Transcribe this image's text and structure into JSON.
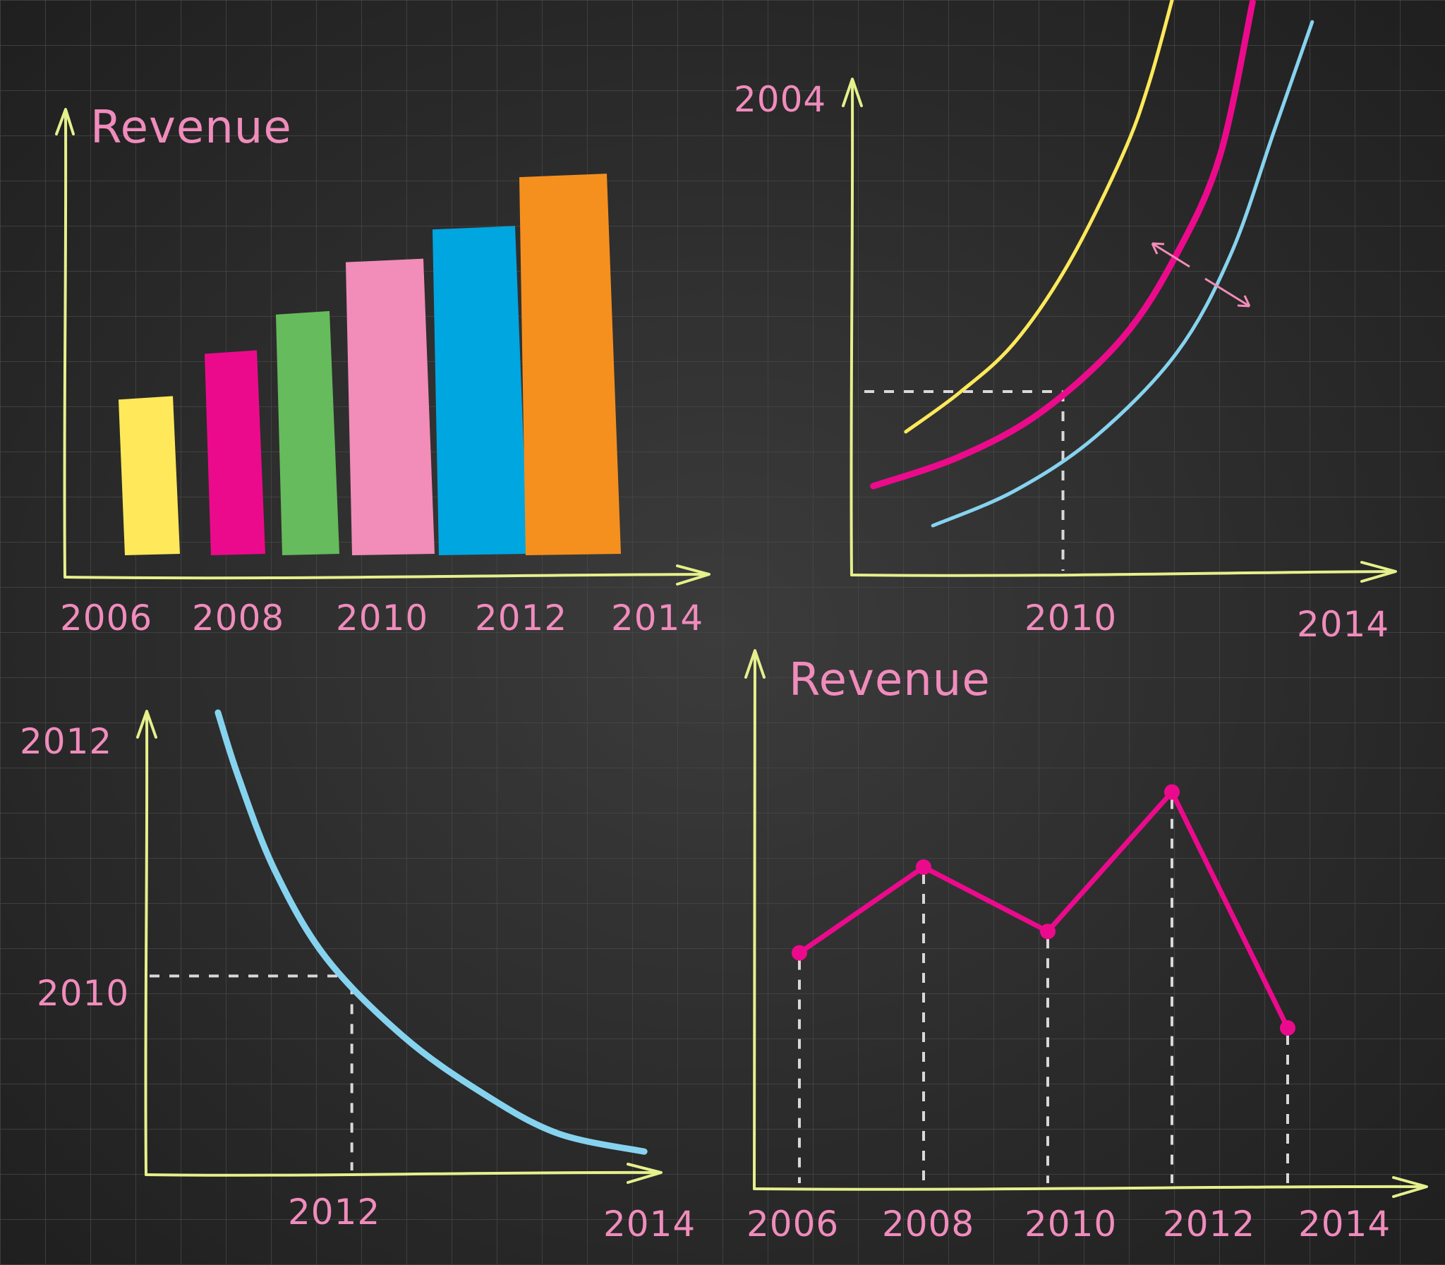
{
  "colors": {
    "axis": "#e6f08c",
    "label": "#f08cbc",
    "yellow": "#ffe95a",
    "magenta": "#ec0a8c",
    "green": "#66bb5c",
    "pink": "#f28cb8",
    "blue": "#00a6e0",
    "orange": "#f5901e",
    "light_blue": "#86d3ef",
    "guide": "#d8d8d8"
  },
  "chart_data": [
    {
      "type": "bar",
      "title": "Revenue",
      "x_tick_labels": [
        "2006",
        "2008",
        "2010",
        "2012",
        "2014"
      ],
      "categories": [
        "bar-1",
        "bar-2",
        "bar-3",
        "bar-4",
        "bar-5",
        "bar-6"
      ],
      "values": [
        24,
        31,
        37,
        45,
        50,
        58
      ],
      "bar_colors": [
        "yellow",
        "magenta",
        "green",
        "pink",
        "blue",
        "orange"
      ],
      "ylim": [
        0,
        62
      ],
      "grid": false
    },
    {
      "type": "line",
      "tick_labels": {
        "y_top": "2004",
        "x_mid": "2010",
        "x_end": "2014"
      },
      "xlim": [
        0,
        100
      ],
      "ylim": [
        0,
        100
      ],
      "series": [
        {
          "color": "yellow",
          "x": [
            10,
            20,
            30,
            40,
            50,
            55,
            60
          ],
          "y": [
            29,
            37,
            47,
            63,
            85,
            100,
            120
          ]
        },
        {
          "color": "magenta",
          "x": [
            4,
            20,
            35,
            50,
            60,
            68,
            74
          ],
          "y": [
            18,
            24,
            33,
            48,
            65,
            85,
            116
          ]
        },
        {
          "color": "light_blue",
          "x": [
            15,
            30,
            45,
            60,
            70,
            78,
            85
          ],
          "y": [
            10,
            17,
            28,
            45,
            65,
            90,
            112
          ]
        }
      ],
      "guide_point": {
        "x": 39,
        "y": 36
      },
      "annotation": "double-headed arrows between curves"
    },
    {
      "type": "line",
      "tick_labels": {
        "y_top": "2012",
        "y_mid": "2010",
        "x_mid": "2012",
        "x_end": "2014"
      },
      "xlim": [
        0,
        100
      ],
      "ylim": [
        0,
        100
      ],
      "series": [
        {
          "color": "light_blue",
          "x": [
            14,
            18,
            25,
            35,
            50,
            65,
            80,
            97
          ],
          "y": [
            100,
            86,
            66,
            47,
            30,
            18,
            9,
            5
          ]
        }
      ],
      "guide_point": {
        "x": 38,
        "y": 43
      }
    },
    {
      "type": "line",
      "title": "Revenue",
      "categories": [
        "2006",
        "2008",
        "2010",
        "2012",
        "2014"
      ],
      "series": [
        {
          "color": "magenta",
          "x": [
            0,
            1,
            2,
            3,
            4
          ],
          "y": [
            44,
            60,
            48,
            74,
            30
          ]
        }
      ],
      "ylim": [
        0,
        100
      ],
      "markers": true,
      "drop_lines": true
    }
  ]
}
